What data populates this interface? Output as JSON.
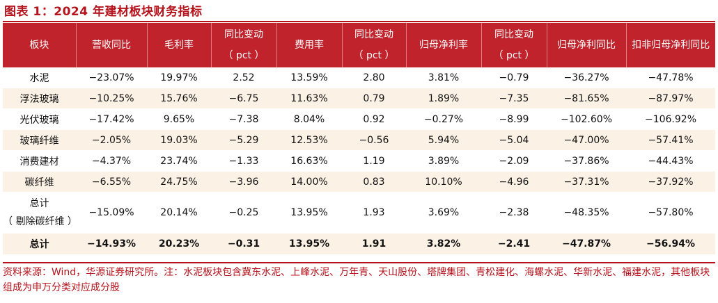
{
  "title": "图表 1：2024 年建材板块财务指标",
  "columns": [
    {
      "line1": "板块",
      "line2": ""
    },
    {
      "line1": "营收同比",
      "line2": ""
    },
    {
      "line1": "毛利率",
      "line2": ""
    },
    {
      "line1": "同比变动",
      "line2": "（ pct ）"
    },
    {
      "line1": "费用率",
      "line2": ""
    },
    {
      "line1": "同比变动",
      "line2": "（ pct ）"
    },
    {
      "line1": "归母净利率",
      "line2": ""
    },
    {
      "line1": "同比变动",
      "line2": "（ pct ）"
    },
    {
      "line1": "归母净利同比",
      "line2": ""
    },
    {
      "line1": "扣非归母净利同比",
      "line2": ""
    }
  ],
  "rows": [
    {
      "name": "水泥",
      "name2": "",
      "cells": [
        "−23.07%",
        "19.97%",
        "2.52",
        "13.59%",
        "2.80",
        "3.81%",
        "−0.79",
        "−36.27%",
        "−47.78%"
      ]
    },
    {
      "name": "浮法玻璃",
      "name2": "",
      "cells": [
        "−10.25%",
        "15.76%",
        "−6.75",
        "11.63%",
        "0.79",
        "1.89%",
        "−7.35",
        "−81.65%",
        "−87.97%"
      ]
    },
    {
      "name": "光伏玻璃",
      "name2": "",
      "cells": [
        "−17.42%",
        "9.65%",
        "−7.38",
        "8.04%",
        "0.92",
        "−0.27%",
        "−8.99",
        "−102.60%",
        "−106.92%"
      ]
    },
    {
      "name": "玻璃纤维",
      "name2": "",
      "cells": [
        "−2.05%",
        "19.03%",
        "−5.29",
        "12.53%",
        "−0.56",
        "5.94%",
        "−5.04",
        "−47.00%",
        "−57.41%"
      ]
    },
    {
      "name": "消费建材",
      "name2": "",
      "cells": [
        "−4.37%",
        "23.74%",
        "−1.33",
        "16.63%",
        "1.19",
        "3.89%",
        "−2.09",
        "−37.86%",
        "−44.43%"
      ]
    },
    {
      "name": "碳纤维",
      "name2": "",
      "cells": [
        "−6.55%",
        "24.75%",
        "−3.96",
        "14.00%",
        "0.83",
        "10.10%",
        "−4.96",
        "−37.31%",
        "−37.92%"
      ]
    },
    {
      "name": "总计",
      "name2": "（ 剔除碳纤维 ）",
      "cells": [
        "−15.09%",
        "20.14%",
        "−0.25",
        "13.95%",
        "1.93",
        "3.69%",
        "−2.38",
        "−48.35%",
        "−57.80%"
      ]
    },
    {
      "name": "总计",
      "name2": "",
      "cells": [
        "−14.93%",
        "20.23%",
        "−0.31",
        "13.95%",
        "1.91",
        "3.82%",
        "−2.41",
        "−47.87%",
        "−56.94%"
      ]
    }
  ],
  "note": "资料来源：Wind，华源证券研究所。注：水泥板块包含冀东水泥、上峰水泥、万年青、天山股份、塔牌集团、青松建化、海螺水泥、华新水泥、福建水泥，其他板块组成为申万分类对应成分股",
  "colors": {
    "accent": "#c0232c",
    "stripe": "#fbf1e4"
  }
}
